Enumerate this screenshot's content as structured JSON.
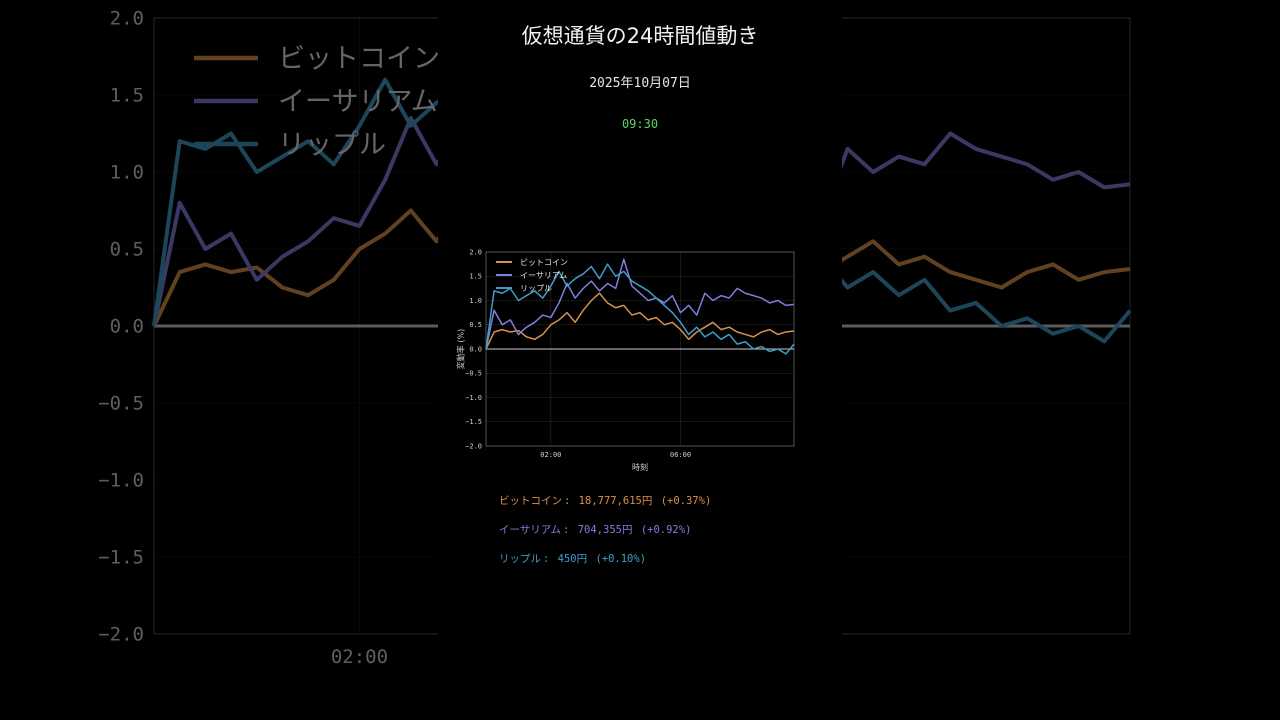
{
  "header": {
    "title": "仮想通貨の24時間値動き",
    "date": "2025年10月07日",
    "time": "09:30"
  },
  "colors": {
    "background": "#000000",
    "time": "#5fd35f",
    "btc": "#d9904a",
    "eth": "#7f7fdc",
    "xrp": "#3f9ec9",
    "grid": "#2a2a2a",
    "axis_text": "#d0d0d0"
  },
  "tickers": [
    {
      "name": "ビットコイン",
      "price": "18,777,615円",
      "change": "(+0.37%)",
      "color": "#d9904a"
    },
    {
      "name": "イーサリアム",
      "price": "704,355円",
      "change": "(+0.92%)",
      "color": "#7f7fdc"
    },
    {
      "name": "リップル",
      "price": "450円",
      "change": "(+0.10%)",
      "color": "#3f9ec9"
    }
  ],
  "chart_data": {
    "type": "line",
    "xlabel": "時刻",
    "ylabel": "変動率 (%)",
    "xlim": [
      0,
      9.5
    ],
    "ylim": [
      -2.0,
      2.0
    ],
    "yticks": [
      -2.0,
      -1.5,
      -1.0,
      -0.5,
      0.0,
      0.5,
      1.0,
      1.5,
      2.0
    ],
    "ytick_labels": [
      "−2.0",
      "−1.5",
      "−1.0",
      "−0.5",
      "0.0",
      "0.5",
      "1.0",
      "1.5",
      "2.0"
    ],
    "xticks": [
      2,
      6
    ],
    "xtick_labels": [
      "02:00",
      "06:00"
    ],
    "grid": true,
    "legend": "top-left",
    "series": [
      {
        "name": "ビットコイン",
        "color": "#d9904a",
        "x": [
          0.0,
          0.25,
          0.5,
          0.75,
          1.0,
          1.25,
          1.5,
          1.75,
          2.0,
          2.25,
          2.5,
          2.75,
          3.0,
          3.25,
          3.5,
          3.75,
          4.0,
          4.25,
          4.5,
          4.75,
          5.0,
          5.25,
          5.5,
          5.75,
          6.0,
          6.25,
          6.5,
          6.75,
          7.0,
          7.25,
          7.5,
          7.75,
          8.0,
          8.25,
          8.5,
          8.75,
          9.0,
          9.25,
          9.5
        ],
        "y": [
          0.0,
          0.35,
          0.4,
          0.35,
          0.38,
          0.25,
          0.2,
          0.3,
          0.5,
          0.6,
          0.75,
          0.55,
          0.8,
          1.0,
          1.15,
          0.95,
          0.85,
          0.9,
          0.7,
          0.75,
          0.6,
          0.65,
          0.5,
          0.55,
          0.4,
          0.2,
          0.35,
          0.45,
          0.55,
          0.4,
          0.45,
          0.35,
          0.3,
          0.25,
          0.35,
          0.4,
          0.3,
          0.35,
          0.37
        ]
      },
      {
        "name": "イーサリアム",
        "color": "#7f7fdc",
        "x": [
          0.0,
          0.25,
          0.5,
          0.75,
          1.0,
          1.25,
          1.5,
          1.75,
          2.0,
          2.25,
          2.5,
          2.75,
          3.0,
          3.25,
          3.5,
          3.75,
          4.0,
          4.25,
          4.5,
          4.75,
          5.0,
          5.25,
          5.5,
          5.75,
          6.0,
          6.25,
          6.5,
          6.75,
          7.0,
          7.25,
          7.5,
          7.75,
          8.0,
          8.25,
          8.5,
          8.75,
          9.0,
          9.25,
          9.5
        ],
        "y": [
          0.0,
          0.8,
          0.5,
          0.6,
          0.3,
          0.45,
          0.55,
          0.7,
          0.65,
          0.95,
          1.35,
          1.05,
          1.25,
          1.4,
          1.2,
          1.35,
          1.25,
          1.85,
          1.3,
          1.15,
          1.0,
          1.05,
          0.95,
          1.1,
          0.75,
          0.9,
          0.7,
          1.15,
          1.0,
          1.1,
          1.05,
          1.25,
          1.15,
          1.1,
          1.05,
          0.95,
          1.0,
          0.9,
          0.92
        ]
      },
      {
        "name": "リップル",
        "color": "#3f9ec9",
        "x": [
          0.0,
          0.25,
          0.5,
          0.75,
          1.0,
          1.25,
          1.5,
          1.75,
          2.0,
          2.25,
          2.5,
          2.75,
          3.0,
          3.25,
          3.5,
          3.75,
          4.0,
          4.25,
          4.5,
          4.75,
          5.0,
          5.25,
          5.5,
          5.75,
          6.0,
          6.25,
          6.5,
          6.75,
          7.0,
          7.25,
          7.5,
          7.75,
          8.0,
          8.25,
          8.5,
          8.75,
          9.0,
          9.25,
          9.5
        ],
        "y": [
          0.0,
          1.2,
          1.15,
          1.25,
          1.0,
          1.1,
          1.2,
          1.05,
          1.3,
          1.6,
          1.3,
          1.45,
          1.55,
          1.7,
          1.45,
          1.75,
          1.5,
          1.6,
          1.4,
          1.3,
          1.2,
          1.05,
          0.9,
          0.75,
          0.55,
          0.3,
          0.45,
          0.25,
          0.35,
          0.2,
          0.3,
          0.1,
          0.15,
          0.0,
          0.05,
          -0.05,
          0.0,
          -0.1,
          0.1
        ]
      }
    ]
  }
}
